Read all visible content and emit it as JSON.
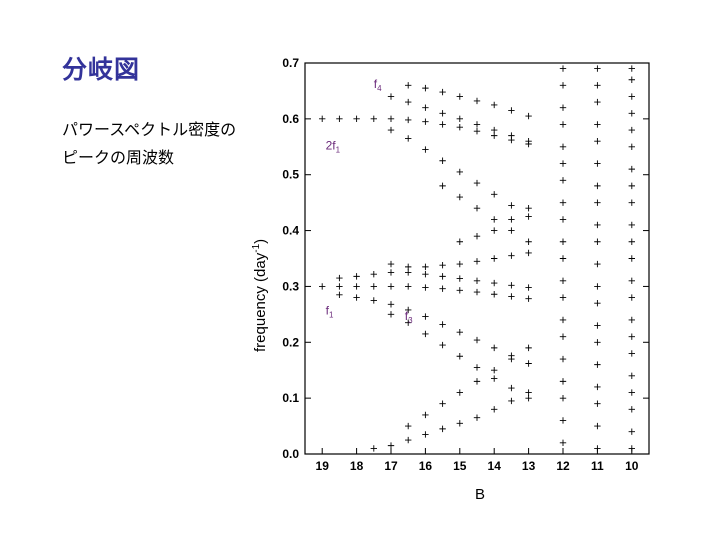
{
  "slide": {
    "title": "分岐図",
    "description_lines": [
      "パワースペクトル密度の",
      "ピークの周波数"
    ]
  },
  "chart_data": {
    "type": "scatter",
    "title": "",
    "xlabel": "B",
    "ylabel": "frequency (day⁻¹)",
    "ylabel_main": "frequency (day",
    "ylabel_sup": "-1",
    "ylabel_close": ")",
    "x_tick_labels": [
      "19",
      "18",
      "17",
      "16",
      "15",
      "14",
      "13",
      "12",
      "11",
      "10"
    ],
    "y_tick_labels": [
      "0.0",
      "0.1",
      "0.2",
      "0.3",
      "0.4",
      "0.5",
      "0.6",
      "0.7"
    ],
    "ylim": [
      0,
      0.7
    ],
    "grid": false,
    "marker": "+",
    "annotations": [
      {
        "label": "f",
        "sub": "4",
        "x": 17.5,
        "y": 0.655
      },
      {
        "label": "2f",
        "sub": "1",
        "x": 18.9,
        "y": 0.545
      },
      {
        "label": "f",
        "sub": "1",
        "x": 18.9,
        "y": 0.25
      },
      {
        "label": "f",
        "sub": "3",
        "x": 16.6,
        "y": 0.24
      }
    ],
    "series": [
      {
        "x": [
          19.0,
          18.5,
          18.0,
          17.5,
          17.0,
          16.5,
          16.0,
          15.5,
          15.0,
          14.5,
          14.0,
          13.5,
          13.0
        ],
        "y": [
          0.3,
          0.3,
          0.3,
          0.3,
          0.3,
          0.3,
          0.298,
          0.296,
          0.293,
          0.29,
          0.286,
          0.282,
          0.278
        ]
      },
      {
        "x": [
          19.0,
          18.5,
          18.0,
          17.5,
          17.0,
          16.5,
          16.0,
          15.5,
          15.0,
          14.5,
          14.0,
          13.5,
          13.0
        ],
        "y": [
          0.6,
          0.6,
          0.6,
          0.6,
          0.6,
          0.598,
          0.595,
          0.59,
          0.585,
          0.578,
          0.57,
          0.562,
          0.555
        ]
      },
      {
        "x": [
          18.5,
          18.0,
          17.5,
          17.0,
          16.5,
          16.0,
          15.5,
          15.0,
          14.5,
          14.0,
          13.5,
          13.0
        ],
        "y": [
          0.285,
          0.28,
          0.275,
          0.268,
          0.258,
          0.246,
          0.232,
          0.218,
          0.204,
          0.19,
          0.176,
          0.162
        ]
      },
      {
        "x": [
          18.5,
          18.0,
          17.5,
          17.0,
          16.5,
          16.0,
          15.5,
          15.0,
          14.5,
          14.0,
          13.5,
          13.0
        ],
        "y": [
          0.315,
          0.318,
          0.322,
          0.325,
          0.325,
          0.322,
          0.318,
          0.314,
          0.31,
          0.306,
          0.302,
          0.298
        ]
      },
      {
        "x": [
          17.0,
          16.5,
          16.0,
          15.5,
          15.0,
          14.5,
          14.0,
          13.5,
          13.0
        ],
        "y": [
          0.25,
          0.235,
          0.215,
          0.195,
          0.175,
          0.155,
          0.135,
          0.118,
          0.1
        ]
      },
      {
        "x": [
          17.0,
          16.5,
          16.0,
          15.5,
          15.0,
          14.5,
          14.0,
          13.5,
          13.0
        ],
        "y": [
          0.34,
          0.335,
          0.335,
          0.338,
          0.34,
          0.345,
          0.35,
          0.355,
          0.36
        ]
      },
      {
        "x": [
          16.5,
          16.0,
          15.5,
          15.0,
          14.5,
          14.0,
          13.5,
          13.0
        ],
        "y": [
          0.05,
          0.07,
          0.09,
          0.11,
          0.13,
          0.15,
          0.17,
          0.19
        ]
      },
      {
        "x": [
          17.5,
          17.0,
          16.5,
          16.0,
          15.5,
          15.0,
          14.5,
          14.0,
          13.5,
          13.0
        ],
        "y": [
          0.01,
          0.015,
          0.025,
          0.035,
          0.045,
          0.055,
          0.065,
          0.08,
          0.095,
          0.11
        ]
      },
      {
        "x": [
          17.0,
          16.5,
          16.0,
          15.5,
          15.0,
          14.5,
          14.0,
          13.5,
          13.0
        ],
        "y": [
          0.64,
          0.63,
          0.62,
          0.61,
          0.6,
          0.59,
          0.58,
          0.57,
          0.56
        ]
      },
      {
        "x": [
          17.0,
          16.5,
          16.0,
          15.5,
          15.0,
          14.5,
          14.0,
          13.5,
          13.0
        ],
        "y": [
          0.58,
          0.565,
          0.545,
          0.525,
          0.505,
          0.485,
          0.465,
          0.445,
          0.425
        ]
      },
      {
        "x": [
          16.5,
          16.0,
          15.5,
          15.0,
          14.5,
          14.0,
          13.5,
          13.0
        ],
        "y": [
          0.66,
          0.655,
          0.648,
          0.64,
          0.632,
          0.625,
          0.615,
          0.605
        ]
      },
      {
        "x": [
          15.5,
          15.0,
          14.5,
          14.0,
          13.5,
          13.0
        ],
        "y": [
          0.48,
          0.46,
          0.44,
          0.42,
          0.4,
          0.38
        ]
      },
      {
        "x": [
          15.0,
          14.5,
          14.0,
          13.5,
          13.0
        ],
        "y": [
          0.38,
          0.39,
          0.4,
          0.42,
          0.44
        ]
      },
      {
        "x": [
          12.0,
          12.0,
          12.0,
          12.0,
          12.0,
          12.0,
          12.0,
          12.0,
          12.0,
          12.0,
          12.0,
          12.0,
          12.0,
          12.0,
          12.0,
          12.0,
          12.0,
          12.0,
          12.0,
          12.0
        ],
        "y": [
          0.02,
          0.06,
          0.1,
          0.13,
          0.17,
          0.21,
          0.24,
          0.28,
          0.31,
          0.35,
          0.38,
          0.42,
          0.45,
          0.49,
          0.52,
          0.55,
          0.59,
          0.62,
          0.66,
          0.69
        ]
      },
      {
        "x": [
          11.0,
          11.0,
          11.0,
          11.0,
          11.0,
          11.0,
          11.0,
          11.0,
          11.0,
          11.0,
          11.0,
          11.0,
          11.0,
          11.0,
          11.0,
          11.0,
          11.0,
          11.0,
          11.0,
          11.0
        ],
        "y": [
          0.01,
          0.05,
          0.09,
          0.12,
          0.16,
          0.2,
          0.23,
          0.27,
          0.3,
          0.34,
          0.38,
          0.41,
          0.45,
          0.48,
          0.52,
          0.56,
          0.59,
          0.63,
          0.66,
          0.69
        ]
      },
      {
        "x": [
          10.0,
          10.0,
          10.0,
          10.0,
          10.0,
          10.0,
          10.0,
          10.0,
          10.0,
          10.0,
          10.0,
          10.0,
          10.0,
          10.0,
          10.0,
          10.0,
          10.0,
          10.0,
          10.0,
          10.0,
          10.0,
          10.0
        ],
        "y": [
          0.01,
          0.04,
          0.08,
          0.11,
          0.14,
          0.18,
          0.21,
          0.24,
          0.28,
          0.31,
          0.35,
          0.38,
          0.41,
          0.45,
          0.48,
          0.51,
          0.55,
          0.58,
          0.61,
          0.64,
          0.67,
          0.69
        ]
      }
    ]
  }
}
